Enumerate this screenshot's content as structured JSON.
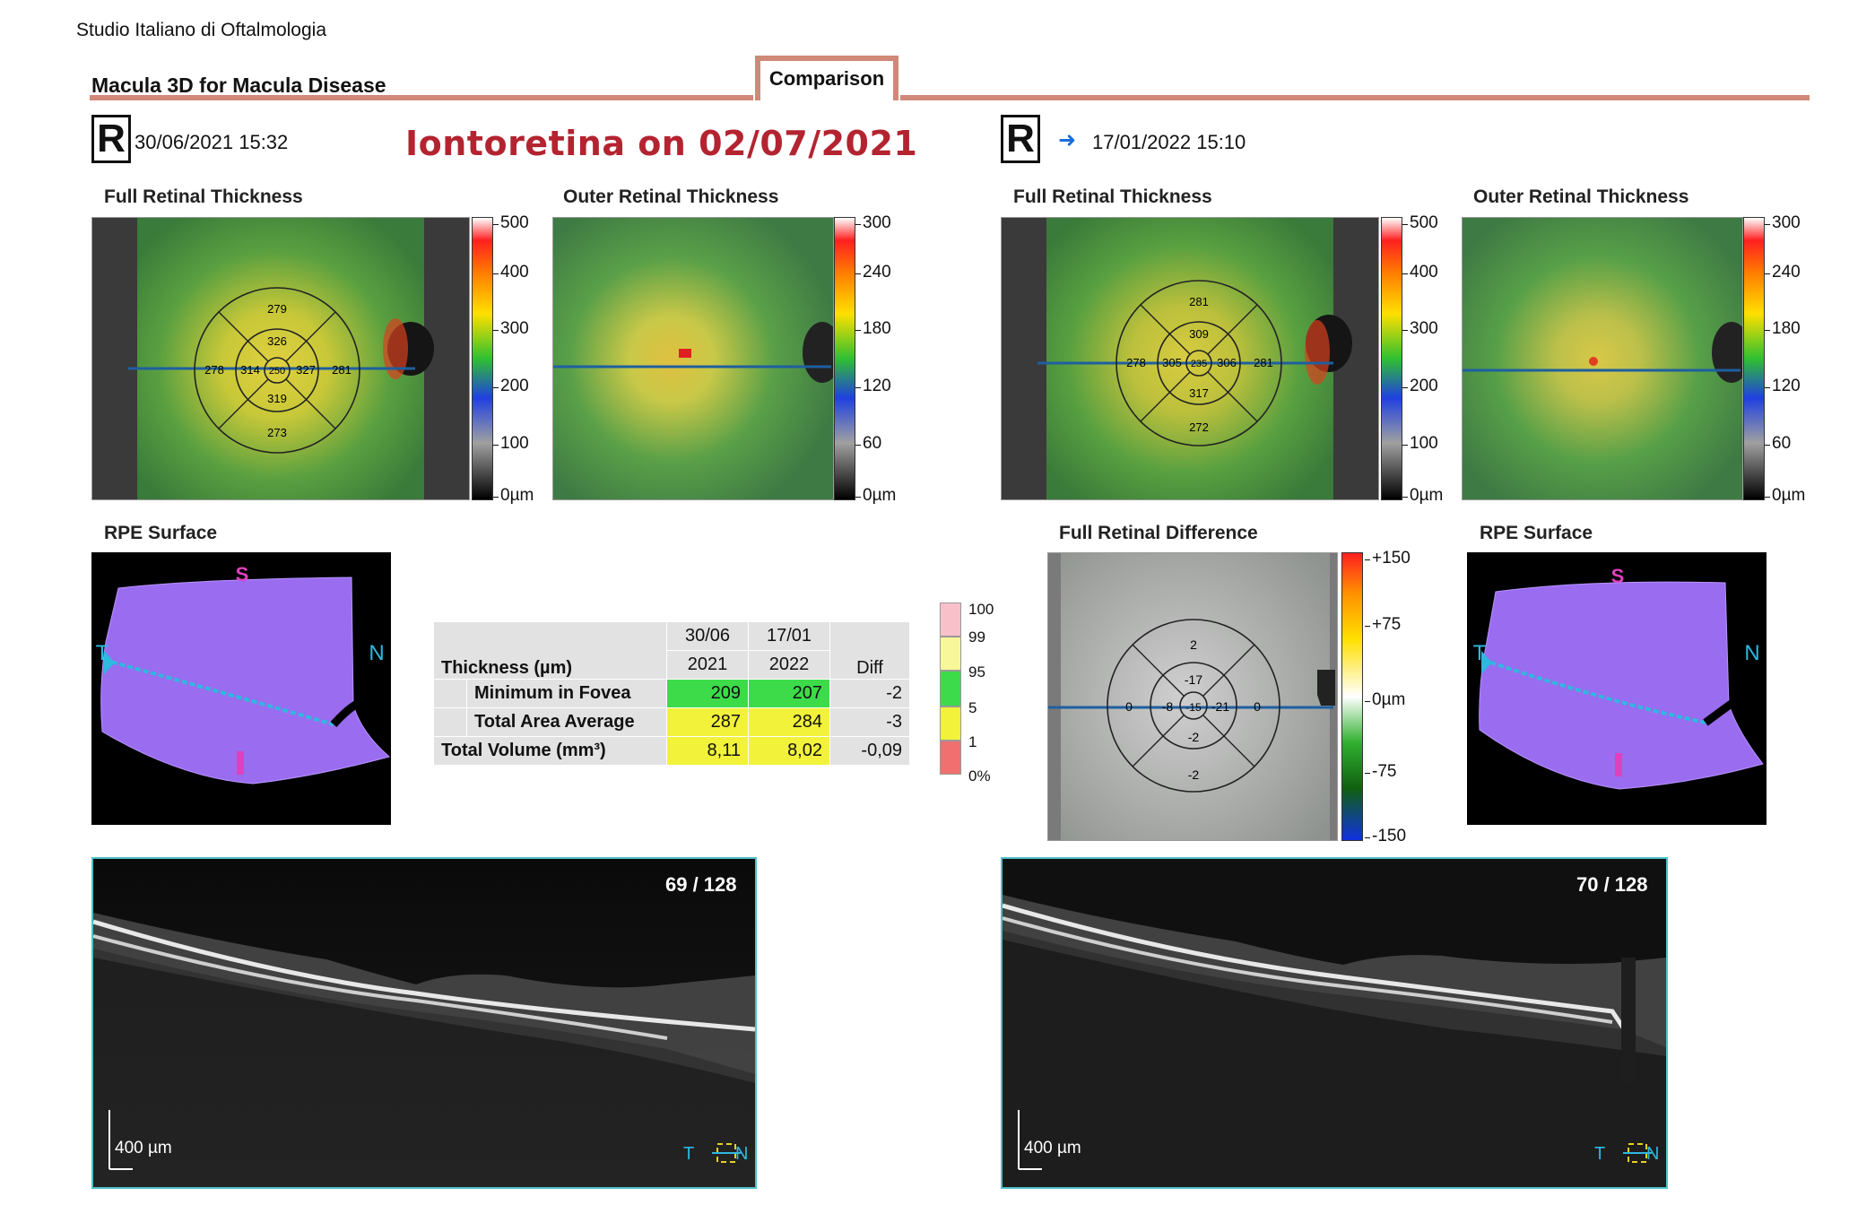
{
  "header": {
    "clinic": "Studio Italiano di Oftalmologia",
    "report_title": "Macula 3D for Macula Disease",
    "tab": "Comparison",
    "annotation": "Iontoretina on 02/07/2021"
  },
  "left": {
    "eye": "R",
    "datetime": "30/06/2021  15:32",
    "full_label": "Full Retinal Thickness",
    "outer_label": "Outer Retinal Thickness",
    "rpe_label": "RPE Surface",
    "scan": "69 / 128",
    "scale": "400 µm",
    "etdrs": {
      "sup_outer": "279",
      "sup_inner": "326",
      "temp_outer": "278",
      "temp_inner": "314",
      "center": "250",
      "nasal_inner": "327",
      "nasal_outer": "281",
      "inf_inner": "319",
      "inf_outer": "273"
    }
  },
  "right": {
    "eye": "R",
    "arrow": "➜",
    "datetime": "17/01/2022  15:10",
    "full_label": "Full Retinal Thickness",
    "outer_label": "Outer Retinal Thickness",
    "diff_label": "Full Retinal Difference",
    "rpe_label": "RPE Surface",
    "scan": "70 / 128",
    "scale": "400 µm",
    "etdrs": {
      "sup_outer": "281",
      "sup_inner": "309",
      "temp_outer": "278",
      "temp_inner": "305",
      "center": "235",
      "nasal_inner": "306",
      "nasal_outer": "281",
      "inf_inner": "317",
      "inf_outer": "272"
    },
    "diff": {
      "sup_outer": "2",
      "sup_inner": "-17",
      "temp_outer": "0",
      "temp_inner": "-8",
      "center": "-15",
      "nasal_inner": "-21",
      "nasal_outer": "0",
      "inf_inner": "-2",
      "inf_outer": "-2"
    }
  },
  "scales": {
    "full": [
      "500",
      "400",
      "300",
      "200",
      "100",
      "0µm"
    ],
    "outer": [
      "300",
      "240",
      "180",
      "120",
      "60",
      "0µm"
    ],
    "diff": [
      "+150",
      "+75",
      "0µm",
      "-75",
      "-150"
    ]
  },
  "rpe_orient": {
    "s": "S",
    "t": "T",
    "n": "N"
  },
  "bscan_orient": {
    "t": "T",
    "n": "N"
  },
  "table": {
    "header": {
      "col1": "Thickness (µm)",
      "d1a": "30/06",
      "d1b": "2021",
      "d2a": "17/01",
      "d2b": "2022",
      "diff": "Diff"
    },
    "rows": [
      {
        "label": "Minimum in Fovea",
        "v1": "209",
        "v2": "207",
        "diff": "-2"
      },
      {
        "label": "Total Area Average",
        "v1": "287",
        "v2": "284",
        "diff": "-3"
      },
      {
        "label": "Total Volume (mm³)",
        "v1": "8,11",
        "v2": "8,02",
        "diff": "-0,09"
      }
    ]
  },
  "percentile_legend": [
    "100",
    "99",
    "95",
    "5",
    "1",
    "0%"
  ],
  "colors": {
    "tab": "#d08878",
    "annotation": "#b32430",
    "rpe": "#9a6cf0",
    "green": "#3ddb4a",
    "yellow": "#f2f23a",
    "scan_border": "#4ec0c8"
  }
}
